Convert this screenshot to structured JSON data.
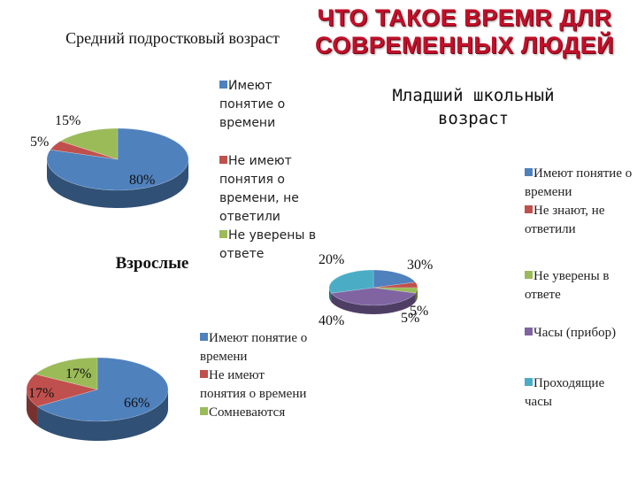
{
  "slide": {
    "title": "ЧТО ТАКОЕ ВРЕМR ДЛR СОВРЕМЕННЫХ ЛЮДЕЙ"
  },
  "colors": {
    "blue": "#4f81bd",
    "red": "#c0504d",
    "green": "#9bbb59",
    "purple": "#8064a2",
    "teal": "#4bacc6",
    "title": "#c0102a"
  },
  "chart_data": [
    {
      "type": "pie",
      "title": "Средний подростковый возраст",
      "series": [
        {
          "label": "Имеют понятие о времени",
          "value": 80,
          "value_label": "80%",
          "color": "#4f81bd"
        },
        {
          "label": "Не имеют понятия о времени, не ответили",
          "value": 5,
          "value_label": "5%",
          "color": "#c0504d"
        },
        {
          "label": "Не уверены в ответе",
          "value": 15,
          "value_label": "15%",
          "color": "#9bbb59"
        }
      ]
    },
    {
      "type": "pie",
      "title": "Младший школьный возраст",
      "series": [
        {
          "label": "Имеют понятие о времени",
          "value": 20,
          "value_label": "20%",
          "color": "#4f81bd"
        },
        {
          "label": "Не знают, не ответили",
          "value": 5,
          "value_label": "5%",
          "color": "#c0504d"
        },
        {
          "label": "Не уверены в ответе",
          "value": 5,
          "value_label": "5%",
          "color": "#9bbb59"
        },
        {
          "label": "Часы (прибор)",
          "value": 40,
          "value_label": "40%",
          "color": "#8064a2"
        },
        {
          "label": "Проходящие часы",
          "value": 30,
          "value_label": "30%",
          "color": "#4bacc6"
        }
      ]
    },
    {
      "type": "pie",
      "title": "Взрослые",
      "series": [
        {
          "label": "Имеют понятие о времени",
          "value": 66,
          "value_label": "66%",
          "color": "#4f81bd"
        },
        {
          "label": "Не имеют понятия о времени",
          "value": 17,
          "value_label": "17%",
          "color": "#c0504d"
        },
        {
          "label": "Сомневаются",
          "value": 17,
          "value_label": "17%",
          "color": "#9bbb59"
        }
      ]
    }
  ]
}
